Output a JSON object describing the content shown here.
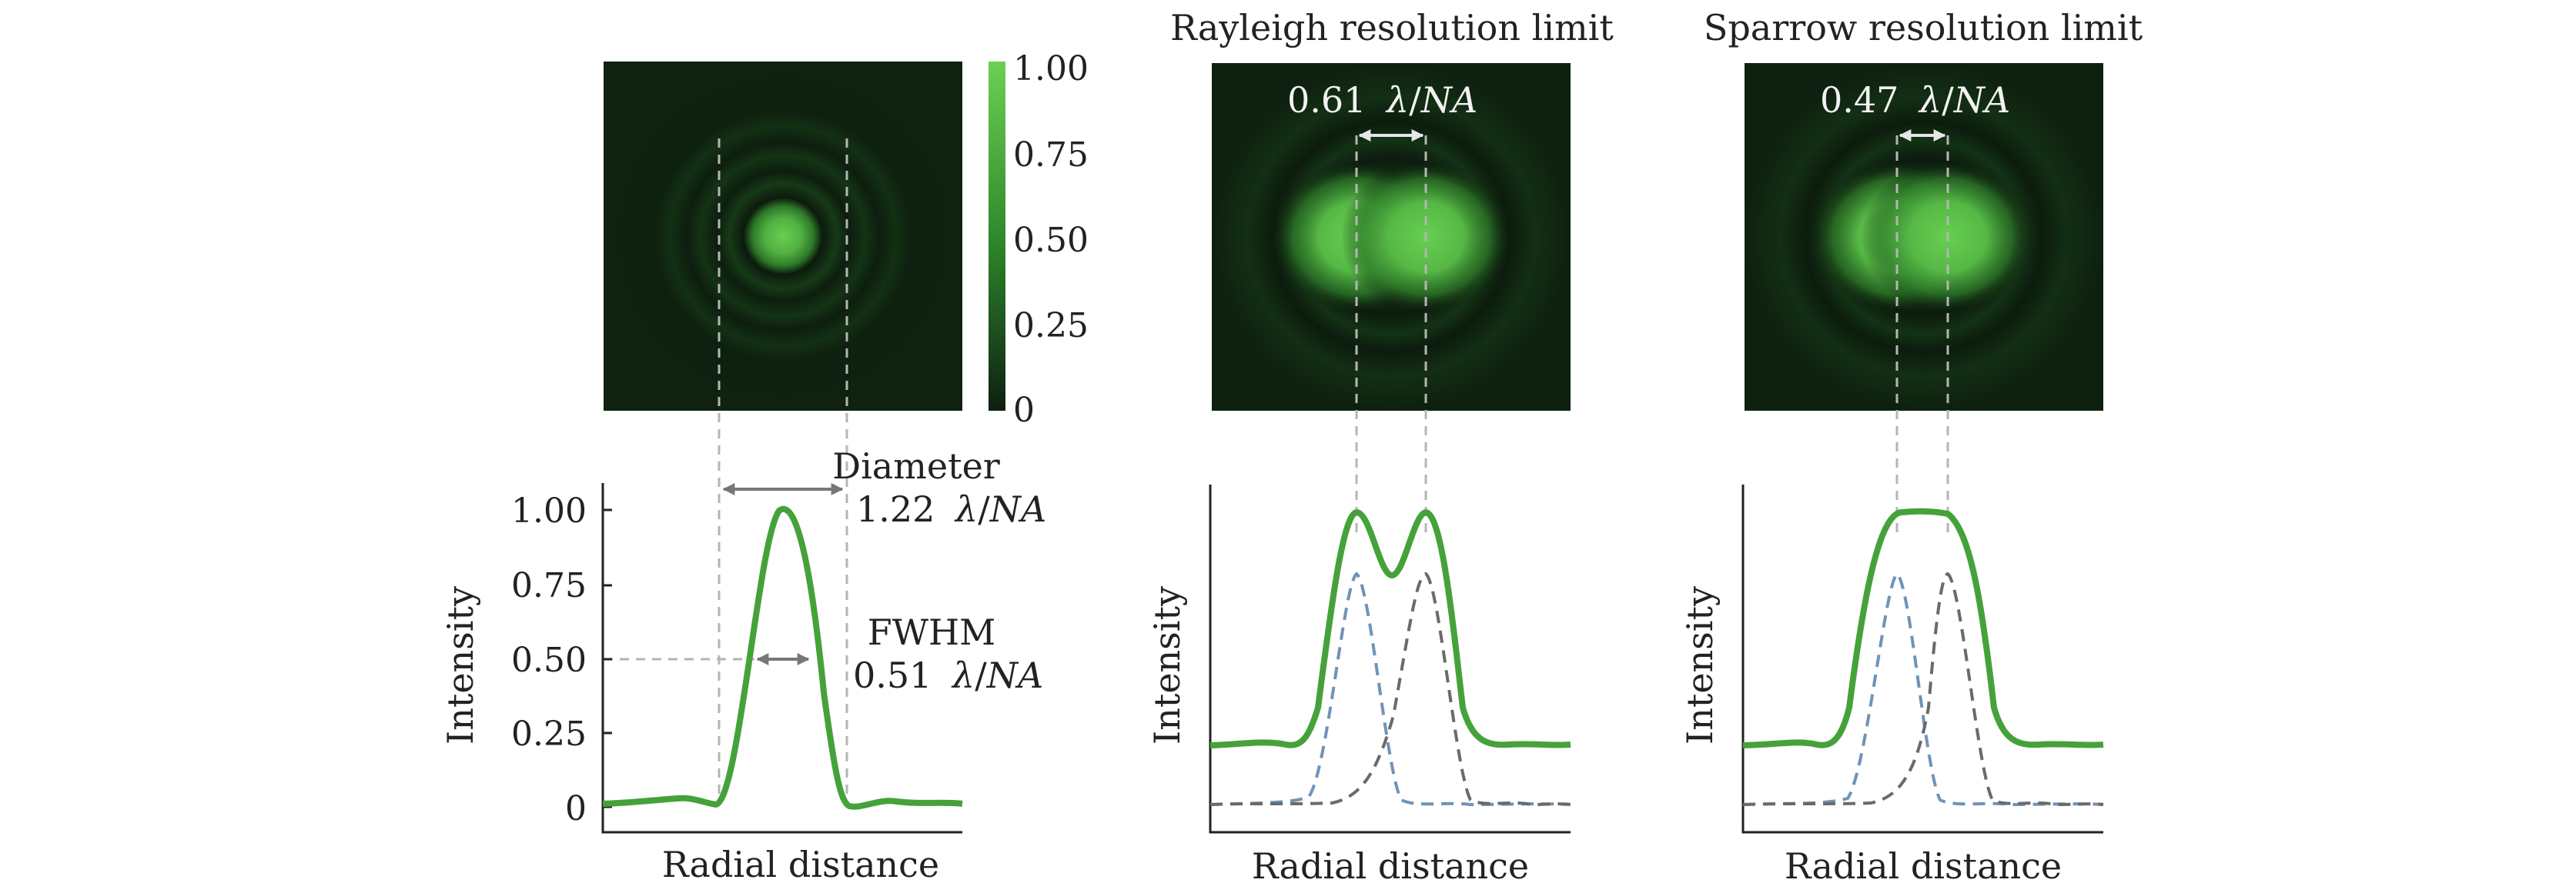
{
  "colorbar": {
    "ticks": [
      "1.00",
      "0.75",
      "0.50",
      "0.25",
      "0"
    ],
    "colors": [
      "#0e1f10",
      "#2f8a2c",
      "#6cd053"
    ]
  },
  "panels": {
    "single": {
      "ylabel": "Intensity",
      "xlabel": "Radial distance",
      "yticks": [
        "1.00",
        "0.75",
        "0.50",
        "0.25",
        "0"
      ],
      "diameter_label": "Diameter",
      "diameter_value": "1.22",
      "fwhm_label": "FWHM",
      "fwhm_value": "0.51"
    },
    "rayleigh": {
      "title": "Rayleigh resolution limit",
      "separation_value": "0.61",
      "ylabel": "Intensity",
      "xlabel": "Radial distance"
    },
    "sparrow": {
      "title": "Sparrow resolution limit",
      "separation_value": "0.47",
      "ylabel": "Intensity",
      "xlabel": "Radial distance"
    }
  },
  "units": {
    "lambda": "λ",
    "slash": "/",
    "na": "NA"
  },
  "colors": {
    "psf_green": "#45a23a",
    "psf_blue_dashed": "#6f93b8",
    "psf_gray_dashed": "#6a6a6a",
    "guide_dashed": "#b5b5b5",
    "image_background": "#0e1f10"
  }
}
